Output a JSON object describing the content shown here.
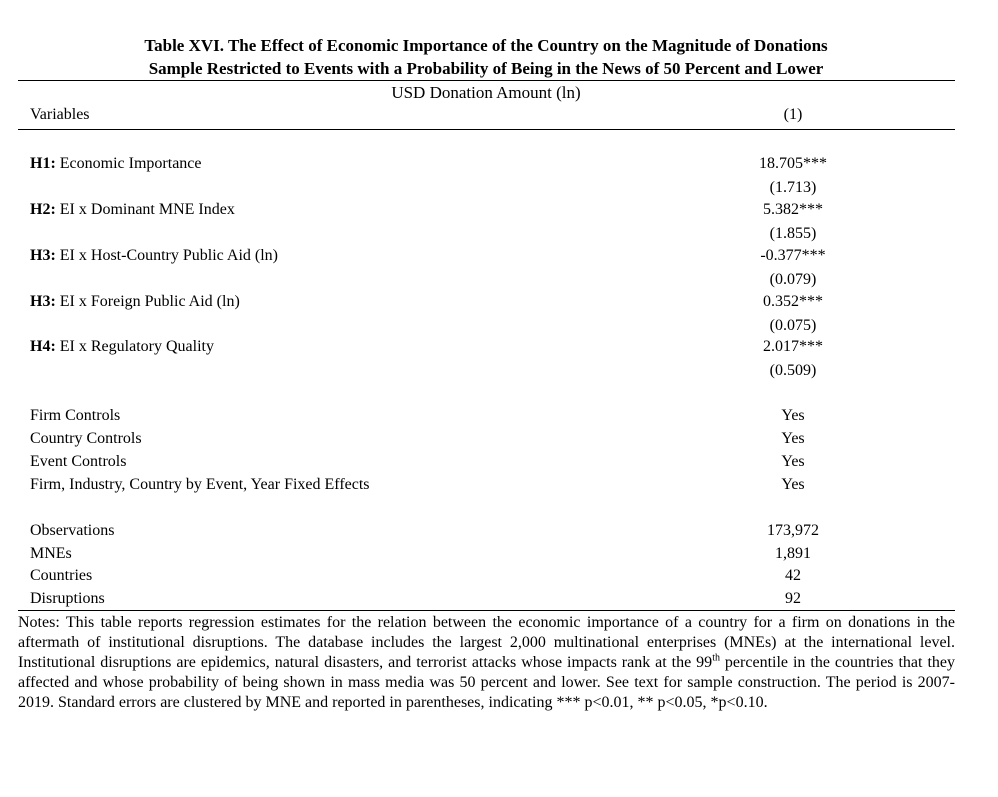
{
  "title": {
    "line1": "Table XVI. The Effect of Economic Importance of the Country on the Magnitude of Donations",
    "line2": "Sample Restricted to Events with a Probability of Being in the News of 50 Percent and Lower"
  },
  "dependent_variable": "USD Donation Amount (ln)",
  "header": {
    "variables": "Variables",
    "column": "(1)"
  },
  "hypotheses": [
    {
      "tag": "H1:",
      "label": "Economic Importance",
      "coef": "18.705***",
      "se": "(1.713)"
    },
    {
      "tag": "H2:",
      "label": "EI x Dominant MNE Index",
      "coef": "5.382***",
      "se": "(1.855)"
    },
    {
      "tag": "H3:",
      "label": "EI x Host-Country Public Aid (ln)",
      "coef": "-0.377***",
      "se": "(0.079)"
    },
    {
      "tag": "H3:",
      "label": "EI x Foreign Public Aid (ln)",
      "coef": "0.352***",
      "se": "(0.075)"
    },
    {
      "tag": "H4:",
      "label": "EI x Regulatory Quality",
      "coef": "2.017***",
      "se": "(0.509)"
    }
  ],
  "controls": [
    {
      "label": "Firm Controls",
      "value": "Yes"
    },
    {
      "label": "Country Controls",
      "value": "Yes"
    },
    {
      "label": "Event Controls",
      "value": "Yes"
    },
    {
      "label": "Firm, Industry, Country by Event, Year Fixed Effects",
      "value": "Yes"
    }
  ],
  "stats": [
    {
      "label": "Observations",
      "value": "173,972"
    },
    {
      "label": "MNEs",
      "value": "1,891"
    },
    {
      "label": "Countries",
      "value": "42"
    },
    {
      "label": "Disruptions",
      "value": "92"
    }
  ],
  "notes": {
    "part1": "Notes: This table reports regression estimates for the relation between the economic importance of a country for a firm on donations in the aftermath of institutional disruptions. The database includes the largest 2,000 multinational enterprises (MNEs) at the international level. Institutional disruptions are epidemics, natural disasters, and terrorist attacks whose impacts rank at the 99",
    "sup": "th",
    "part2": " percentile in the countries that they affected and whose probability of being shown in mass media was 50 percent and lower. See text for sample construction. The period is 2007-2019. Standard errors are clustered by MNE and reported in parentheses, indicating *** p<0.01, ** p<0.05, *p<0.10."
  }
}
